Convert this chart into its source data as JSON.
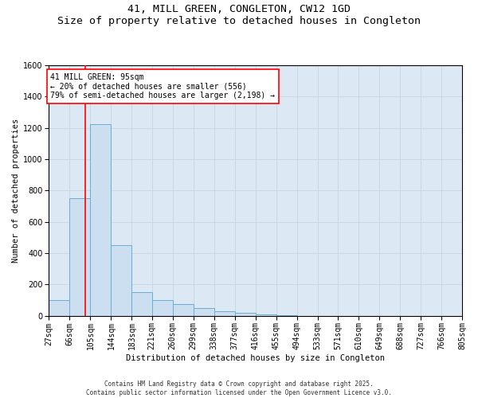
{
  "title": "41, MILL GREEN, CONGLETON, CW12 1GD",
  "subtitle": "Size of property relative to detached houses in Congleton",
  "xlabel": "Distribution of detached houses by size in Congleton",
  "ylabel": "Number of detached properties",
  "footnote1": "Contains HM Land Registry data © Crown copyright and database right 2025.",
  "footnote2": "Contains public sector information licensed under the Open Government Licence v3.0.",
  "bins": [
    27,
    66,
    105,
    144,
    183,
    221,
    260,
    299,
    338,
    377,
    416,
    455,
    494,
    533,
    571,
    610,
    649,
    688,
    727,
    766,
    805
  ],
  "bin_labels": [
    "27sqm",
    "66sqm",
    "105sqm",
    "144sqm",
    "183sqm",
    "221sqm",
    "260sqm",
    "299sqm",
    "338sqm",
    "377sqm",
    "416sqm",
    "455sqm",
    "494sqm",
    "533sqm",
    "571sqm",
    "610sqm",
    "649sqm",
    "688sqm",
    "727sqm",
    "766sqm",
    "805sqm"
  ],
  "values": [
    100,
    750,
    1225,
    450,
    150,
    100,
    75,
    50,
    30,
    20,
    10,
    5,
    0,
    0,
    0,
    0,
    0,
    0,
    0,
    0
  ],
  "bar_color": "#ccdff0",
  "bar_edge_color": "#6aadd5",
  "bar_edge_width": 0.7,
  "grid_color": "#c8d4e0",
  "plot_bg_color": "#dce9f5",
  "ylim": [
    0,
    1600
  ],
  "yticks": [
    0,
    200,
    400,
    600,
    800,
    1000,
    1200,
    1400,
    1600
  ],
  "red_line_x": 95,
  "annotation_text1": "41 MILL GREEN: 95sqm",
  "annotation_text2": "← 20% of detached houses are smaller (556)",
  "annotation_text3": "79% of semi-detached houses are larger (2,198) →",
  "title_fontsize": 9.5,
  "subtitle_fontsize": 8,
  "axis_label_fontsize": 7.5,
  "tick_fontsize": 7,
  "annotation_fontsize": 7,
  "footnote_fontsize": 5.5
}
